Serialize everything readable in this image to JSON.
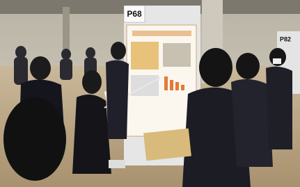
{
  "labels": {
    "poster_main": "P68",
    "poster_right": "P82"
  }
}
